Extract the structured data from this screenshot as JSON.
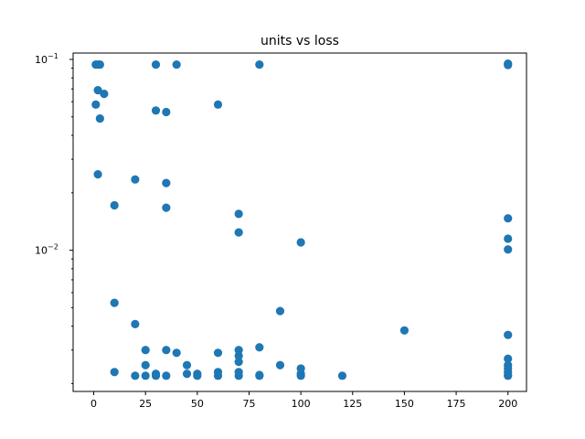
{
  "chart_data": {
    "type": "scatter",
    "title": "units vs loss",
    "xlabel": "",
    "ylabel": "",
    "xlim": [
      -9.95,
      208.95
    ],
    "ylim": [
      0.00182,
      0.108
    ],
    "yscale": "log",
    "grid": false,
    "marker_color": "#1f77b4",
    "x_ticks": [
      0,
      25,
      50,
      75,
      100,
      125,
      150,
      175,
      200
    ],
    "x_tick_labels": [
      "0",
      "25",
      "50",
      "75",
      "100",
      "125",
      "150",
      "175",
      "200"
    ],
    "y_major_ticks": [
      0.01,
      0.1
    ],
    "y_tick_labels": [
      "10",
      "10"
    ],
    "y_tick_exponents": [
      "−2",
      "−1"
    ],
    "points": [
      {
        "x": 1,
        "y": 0.094
      },
      {
        "x": 2,
        "y": 0.094
      },
      {
        "x": 3,
        "y": 0.094
      },
      {
        "x": 30,
        "y": 0.094
      },
      {
        "x": 40,
        "y": 0.094
      },
      {
        "x": 80,
        "y": 0.094
      },
      {
        "x": 200,
        "y": 0.095
      },
      {
        "x": 200,
        "y": 0.0935
      },
      {
        "x": 2,
        "y": 0.069
      },
      {
        "x": 5,
        "y": 0.066
      },
      {
        "x": 1,
        "y": 0.058
      },
      {
        "x": 3,
        "y": 0.049
      },
      {
        "x": 30,
        "y": 0.054
      },
      {
        "x": 35,
        "y": 0.053
      },
      {
        "x": 60,
        "y": 0.058
      },
      {
        "x": 2,
        "y": 0.025
      },
      {
        "x": 20,
        "y": 0.0235
      },
      {
        "x": 35,
        "y": 0.0225
      },
      {
        "x": 10,
        "y": 0.0172
      },
      {
        "x": 35,
        "y": 0.0167
      },
      {
        "x": 70,
        "y": 0.0155
      },
      {
        "x": 200,
        "y": 0.0147
      },
      {
        "x": 70,
        "y": 0.0124
      },
      {
        "x": 200,
        "y": 0.0115
      },
      {
        "x": 100,
        "y": 0.011
      },
      {
        "x": 200,
        "y": 0.0101
      },
      {
        "x": 10,
        "y": 0.0053
      },
      {
        "x": 90,
        "y": 0.0048
      },
      {
        "x": 20,
        "y": 0.0041
      },
      {
        "x": 150,
        "y": 0.0038
      },
      {
        "x": 200,
        "y": 0.0036
      },
      {
        "x": 80,
        "y": 0.0031
      },
      {
        "x": 25,
        "y": 0.003
      },
      {
        "x": 35,
        "y": 0.003
      },
      {
        "x": 70,
        "y": 0.003
      },
      {
        "x": 40,
        "y": 0.0029
      },
      {
        "x": 60,
        "y": 0.0029
      },
      {
        "x": 70,
        "y": 0.0028
      },
      {
        "x": 200,
        "y": 0.0027
      },
      {
        "x": 70,
        "y": 0.0026
      },
      {
        "x": 25,
        "y": 0.0025
      },
      {
        "x": 45,
        "y": 0.0025
      },
      {
        "x": 90,
        "y": 0.0025
      },
      {
        "x": 100,
        "y": 0.0024
      },
      {
        "x": 200,
        "y": 0.0025
      },
      {
        "x": 200,
        "y": 0.0024
      },
      {
        "x": 10,
        "y": 0.0023
      },
      {
        "x": 45,
        "y": 0.00225
      },
      {
        "x": 60,
        "y": 0.0023
      },
      {
        "x": 70,
        "y": 0.0023
      },
      {
        "x": 200,
        "y": 0.0023
      },
      {
        "x": 20,
        "y": 0.0022
      },
      {
        "x": 25,
        "y": 0.0022
      },
      {
        "x": 30,
        "y": 0.0022
      },
      {
        "x": 30,
        "y": 0.00225
      },
      {
        "x": 35,
        "y": 0.0022
      },
      {
        "x": 50,
        "y": 0.0022
      },
      {
        "x": 50,
        "y": 0.00225
      },
      {
        "x": 60,
        "y": 0.0022
      },
      {
        "x": 70,
        "y": 0.0022
      },
      {
        "x": 80,
        "y": 0.0022
      },
      {
        "x": 80,
        "y": 0.00222
      },
      {
        "x": 100,
        "y": 0.0022
      },
      {
        "x": 100,
        "y": 0.00225
      },
      {
        "x": 120,
        "y": 0.0022
      },
      {
        "x": 200,
        "y": 0.0022
      },
      {
        "x": 200,
        "y": 0.00222
      }
    ]
  }
}
